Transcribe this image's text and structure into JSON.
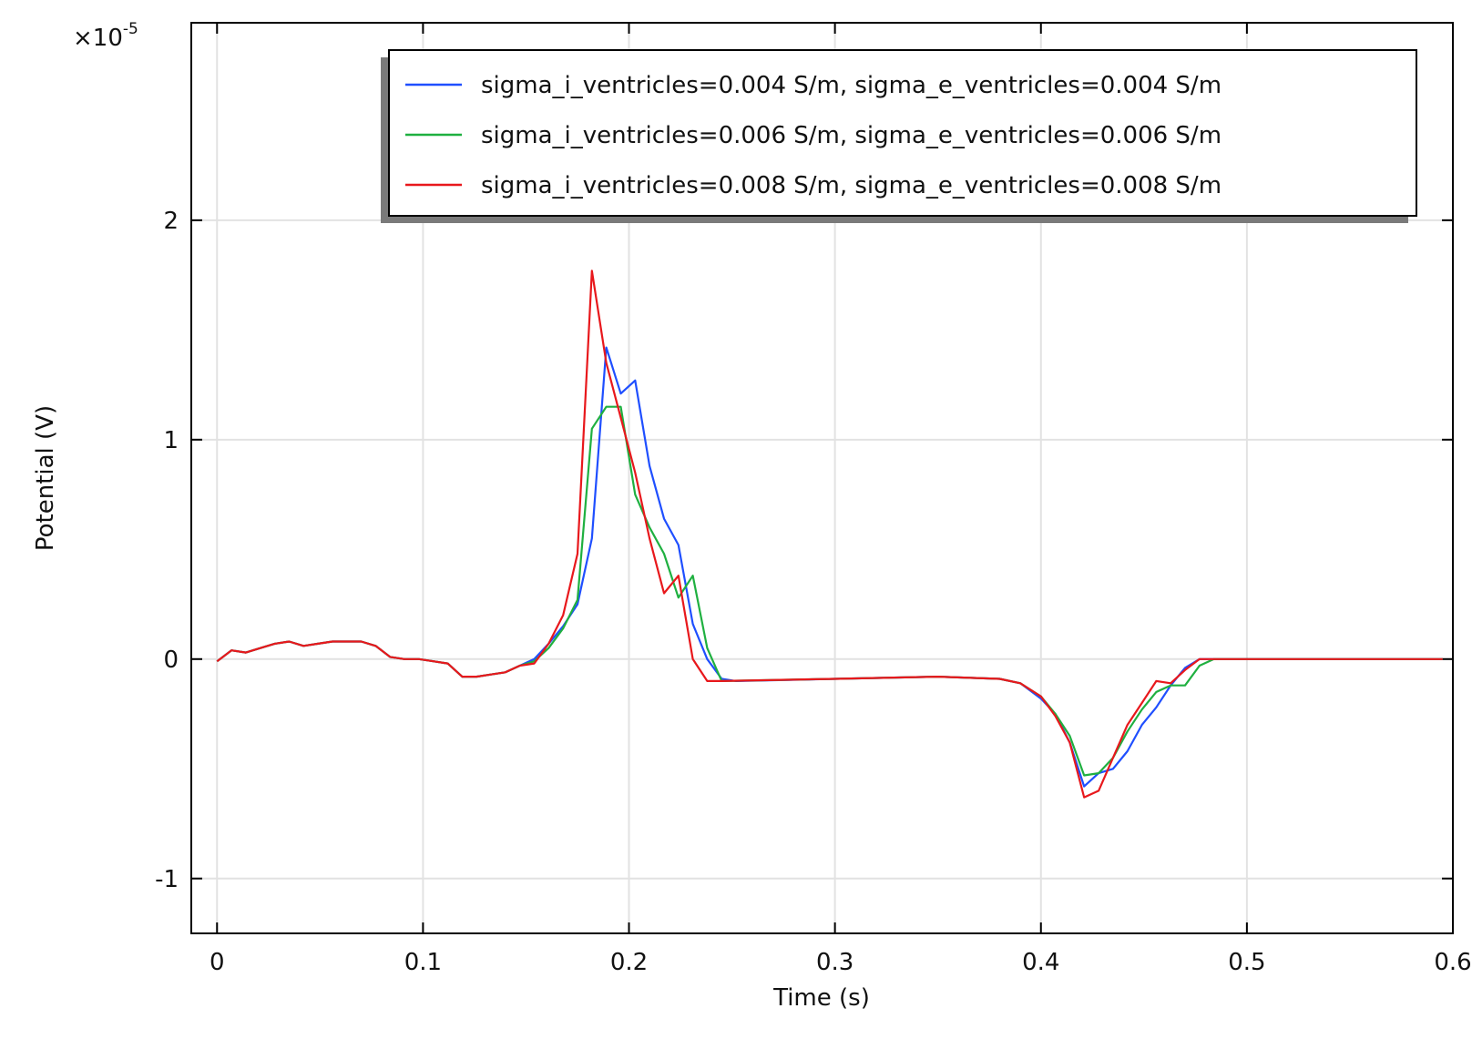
{
  "chart_data": {
    "type": "line",
    "xlabel": "Time (s)",
    "ylabel": "Potential (V)",
    "y_exponent_label": "×10",
    "y_exponent": "-5",
    "xlim": [
      -0.0125,
      0.6
    ],
    "ylim": [
      -1.25,
      2.9
    ],
    "xticks": [
      0,
      0.1,
      0.2,
      0.3,
      0.4,
      0.5,
      0.6
    ],
    "xtick_labels": [
      "0",
      "0.1",
      "0.2",
      "0.3",
      "0.4",
      "0.5",
      "0.6"
    ],
    "yticks": [
      -1,
      0,
      1,
      2
    ],
    "ytick_labels": [
      "-1",
      "0",
      "1",
      "2"
    ],
    "grid": true,
    "legend_position": "top-right",
    "series": [
      {
        "name": "sigma_i_ventricles=0.004 S/m, sigma_e_ventricles=0.004 S/m",
        "color": "#1f4fff",
        "x": [
          0,
          0.007,
          0.014,
          0.021,
          0.028,
          0.035,
          0.042,
          0.049,
          0.056,
          0.063,
          0.07,
          0.077,
          0.084,
          0.091,
          0.098,
          0.105,
          0.112,
          0.119,
          0.126,
          0.133,
          0.14,
          0.147,
          0.154,
          0.161,
          0.168,
          0.175,
          0.182,
          0.189,
          0.196,
          0.203,
          0.21,
          0.217,
          0.224,
          0.231,
          0.238,
          0.245,
          0.252,
          0.3,
          0.35,
          0.38,
          0.39,
          0.4,
          0.407,
          0.414,
          0.421,
          0.428,
          0.435,
          0.442,
          0.449,
          0.456,
          0.463,
          0.47,
          0.477,
          0.484,
          0.5,
          0.55,
          0.595
        ],
        "values": [
          -0.01,
          0.04,
          0.03,
          0.05,
          0.07,
          0.08,
          0.06,
          0.07,
          0.08,
          0.08,
          0.08,
          0.06,
          0.01,
          0.0,
          0.0,
          -0.01,
          -0.02,
          -0.08,
          -0.08,
          -0.07,
          -0.06,
          -0.03,
          0.0,
          0.07,
          0.15,
          0.25,
          0.55,
          1.42,
          1.21,
          1.27,
          0.88,
          0.64,
          0.52,
          0.16,
          0.0,
          -0.09,
          -0.1,
          -0.09,
          -0.08,
          -0.09,
          -0.11,
          -0.18,
          -0.25,
          -0.38,
          -0.58,
          -0.52,
          -0.5,
          -0.42,
          -0.3,
          -0.22,
          -0.12,
          -0.04,
          0.0,
          0.0,
          0.0,
          0.0,
          0.0
        ]
      },
      {
        "name": "sigma_i_ventricles=0.006 S/m, sigma_e_ventricles=0.006 S/m",
        "color": "#1fb040",
        "x": [
          0,
          0.007,
          0.014,
          0.021,
          0.028,
          0.035,
          0.042,
          0.049,
          0.056,
          0.063,
          0.07,
          0.077,
          0.084,
          0.091,
          0.098,
          0.105,
          0.112,
          0.119,
          0.126,
          0.133,
          0.14,
          0.147,
          0.154,
          0.161,
          0.168,
          0.175,
          0.182,
          0.189,
          0.196,
          0.203,
          0.21,
          0.217,
          0.224,
          0.231,
          0.238,
          0.245,
          0.3,
          0.35,
          0.38,
          0.39,
          0.4,
          0.407,
          0.414,
          0.421,
          0.428,
          0.435,
          0.442,
          0.449,
          0.456,
          0.463,
          0.47,
          0.477,
          0.484,
          0.5,
          0.55,
          0.595
        ],
        "values": [
          -0.01,
          0.04,
          0.03,
          0.05,
          0.07,
          0.08,
          0.06,
          0.07,
          0.08,
          0.08,
          0.08,
          0.06,
          0.01,
          0.0,
          0.0,
          -0.01,
          -0.02,
          -0.08,
          -0.08,
          -0.07,
          -0.06,
          -0.03,
          -0.01,
          0.05,
          0.14,
          0.27,
          1.05,
          1.15,
          1.15,
          0.75,
          0.6,
          0.48,
          0.28,
          0.38,
          0.05,
          -0.1,
          -0.09,
          -0.08,
          -0.09,
          -0.11,
          -0.17,
          -0.25,
          -0.35,
          -0.53,
          -0.52,
          -0.45,
          -0.33,
          -0.23,
          -0.15,
          -0.12,
          -0.12,
          -0.03,
          0.0,
          0.0,
          0.0,
          0.0
        ]
      },
      {
        "name": "sigma_i_ventricles=0.008 S/m, sigma_e_ventricles=0.008 S/m",
        "color": "#e8181c",
        "x": [
          0,
          0.007,
          0.014,
          0.021,
          0.028,
          0.035,
          0.042,
          0.049,
          0.056,
          0.063,
          0.07,
          0.077,
          0.084,
          0.091,
          0.098,
          0.105,
          0.112,
          0.119,
          0.126,
          0.133,
          0.14,
          0.147,
          0.154,
          0.161,
          0.168,
          0.175,
          0.182,
          0.189,
          0.196,
          0.203,
          0.21,
          0.217,
          0.224,
          0.231,
          0.238,
          0.245,
          0.3,
          0.35,
          0.38,
          0.39,
          0.4,
          0.407,
          0.414,
          0.421,
          0.428,
          0.435,
          0.442,
          0.449,
          0.456,
          0.463,
          0.47,
          0.477,
          0.484,
          0.5,
          0.55,
          0.595
        ],
        "values": [
          -0.01,
          0.04,
          0.03,
          0.05,
          0.07,
          0.08,
          0.06,
          0.07,
          0.08,
          0.08,
          0.08,
          0.06,
          0.01,
          0.0,
          0.0,
          -0.01,
          -0.02,
          -0.08,
          -0.08,
          -0.07,
          -0.06,
          -0.03,
          -0.02,
          0.07,
          0.2,
          0.48,
          1.77,
          1.35,
          1.1,
          0.85,
          0.55,
          0.3,
          0.38,
          0.0,
          -0.1,
          -0.1,
          -0.09,
          -0.08,
          -0.09,
          -0.11,
          -0.17,
          -0.26,
          -0.38,
          -0.63,
          -0.6,
          -0.45,
          -0.3,
          -0.2,
          -0.1,
          -0.11,
          -0.05,
          0.0,
          0.0,
          0.0,
          0.0,
          0.0
        ]
      }
    ]
  }
}
